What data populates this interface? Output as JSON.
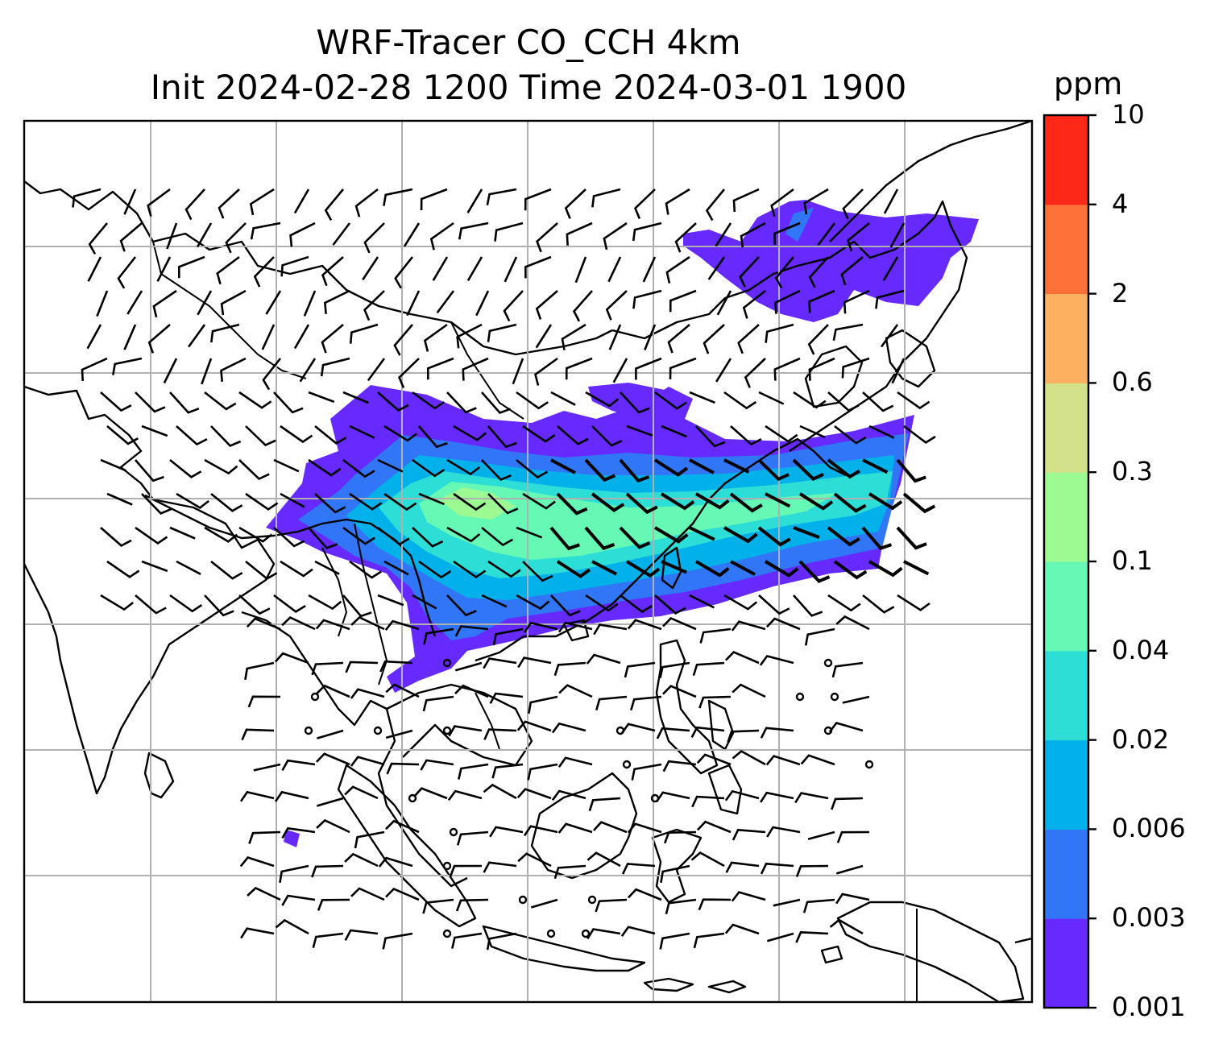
{
  "title": {
    "line1": "WRF-Tracer CO_CCH 4km",
    "line2": "Init 2024-02-28 1200 Time 2024-03-01 1900"
  },
  "colorbar": {
    "unit": "ppm",
    "levels": [
      "0.001",
      "0.003",
      "0.006",
      "0.02",
      "0.04",
      "0.1",
      "0.3",
      "0.6",
      "2",
      "4",
      "10"
    ],
    "colors": [
      "#6629fe",
      "#3176f6",
      "#03b1ea",
      "#2dded6",
      "#66f9b6",
      "#9dfa92",
      "#d3e18a",
      "#fdb060",
      "#fe7138",
      "#fe2818"
    ]
  },
  "map": {
    "features": [
      "coastlines",
      "country-borders",
      "gridlines",
      "wind-barbs",
      "tracer-plume"
    ]
  }
}
